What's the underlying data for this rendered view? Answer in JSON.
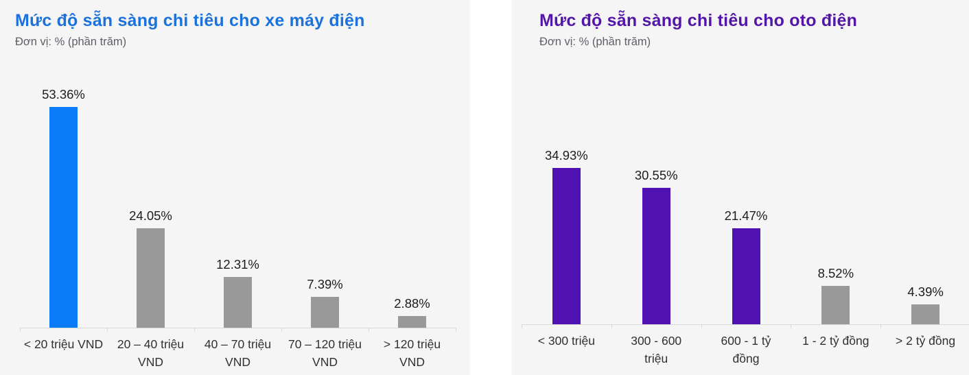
{
  "page": {
    "background": "#ffffff",
    "panel_background": "#f5f5f6"
  },
  "chart_data": [
    {
      "type": "bar",
      "title": "Mức độ sẵn sàng chi tiêu cho xe máy điện",
      "subtitle": "Đơn vị: % (phần trăm)",
      "title_color": "#1b72dc",
      "categories": [
        "< 20 triệu VND",
        "20 – 40 triệu\nVND",
        "40 – 70 triệu\nVND",
        "70 – 120 triệu\nVND",
        "> 120 triệu\nVND"
      ],
      "values": [
        53.36,
        24.05,
        12.31,
        7.39,
        2.88
      ],
      "value_labels": [
        "53.36%",
        "24.05%",
        "12.31%",
        "7.39%",
        "2.88%"
      ],
      "bar_colors": [
        "#0a7cf8",
        "#999999",
        "#999999",
        "#999999",
        "#999999"
      ],
      "highlight_color": "#0a7cf8",
      "muted_color": "#999999",
      "axis_color": "#d9d9d9",
      "xlabel": "",
      "ylabel": "% (phần trăm)",
      "ylim": [
        0,
        60
      ],
      "grid": false,
      "legend": "none"
    },
    {
      "type": "bar",
      "title": "Mức độ sẵn sàng chi tiêu cho oto điện",
      "subtitle": "Đơn vị: % (phần trăm)",
      "title_color": "#5316a8",
      "categories": [
        "< 300 triệu",
        "300 - 600\ntriệu",
        "600 - 1 tỷ\nđồng",
        "1 - 2 tỷ đồng",
        "> 2 tỷ đồng"
      ],
      "values": [
        34.93,
        30.55,
        21.47,
        8.52,
        4.39
      ],
      "value_labels": [
        "34.93%",
        "30.55%",
        "21.47%",
        "8.52%",
        "4.39%"
      ],
      "bar_colors": [
        "#5012b2",
        "#5012b2",
        "#5012b2",
        "#999999",
        "#999999"
      ],
      "highlight_color": "#5012b2",
      "muted_color": "#999999",
      "axis_color": "#d9d9d9",
      "xlabel": "",
      "ylabel": "% (phần trăm)",
      "ylim": [
        0,
        40
      ],
      "grid": false,
      "legend": "none"
    }
  ]
}
